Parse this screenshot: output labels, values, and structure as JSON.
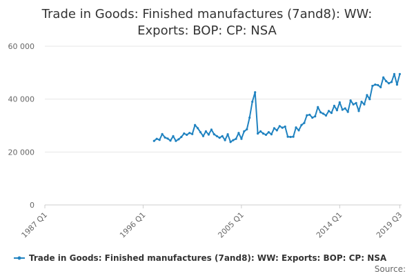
{
  "chart_data": {
    "type": "line",
    "title_lines": [
      "Trade in Goods: Finished manufactures (7and8): WW:",
      "Exports: BOP: CP: NSA"
    ],
    "xlabel": "",
    "ylabel": "",
    "x_ticks": [
      "1987 Q1",
      "1996 Q1",
      "2005 Q1",
      "2014 Q1",
      "2019 Q3"
    ],
    "y_ticks": [
      "0",
      "20 000",
      "40 000",
      "60 000"
    ],
    "xlim": [
      "1987-01",
      "2019-09"
    ],
    "ylim": [
      0,
      60000
    ],
    "grid": "horizontal",
    "legend_position": "bottom",
    "color": "#1f82c0",
    "series": [
      {
        "name": "Trade in Goods: Finished manufactures (7and8): WW: Exports: BOP: CP: NSA",
        "x": [
          "1997-01",
          "1997-04",
          "1997-07",
          "1997-10",
          "1998-01",
          "1998-04",
          "1998-07",
          "1998-10",
          "1999-01",
          "1999-04",
          "1999-07",
          "1999-10",
          "2000-01",
          "2000-04",
          "2000-07",
          "2000-10",
          "2001-01",
          "2001-04",
          "2001-07",
          "2001-10",
          "2002-01",
          "2002-04",
          "2002-07",
          "2002-10",
          "2003-01",
          "2003-04",
          "2003-07",
          "2003-10",
          "2004-01",
          "2004-04",
          "2004-07",
          "2004-10",
          "2005-01",
          "2005-04",
          "2005-07",
          "2005-10",
          "2006-01",
          "2006-04",
          "2006-07",
          "2006-10",
          "2007-01",
          "2007-04",
          "2007-07",
          "2007-10",
          "2008-01",
          "2008-04",
          "2008-07",
          "2008-10",
          "2009-01",
          "2009-04",
          "2009-07",
          "2009-10",
          "2010-01",
          "2010-04",
          "2010-07",
          "2010-10",
          "2011-01",
          "2011-04",
          "2011-07",
          "2011-10",
          "2012-01",
          "2012-04",
          "2012-07",
          "2012-10",
          "2013-01",
          "2013-04",
          "2013-07",
          "2013-10",
          "2014-01",
          "2014-04",
          "2014-07",
          "2014-10",
          "2015-01",
          "2015-04",
          "2015-07",
          "2015-10",
          "2016-01",
          "2016-04",
          "2016-07",
          "2016-10",
          "2017-01",
          "2017-04",
          "2017-07",
          "2017-10",
          "2018-01",
          "2018-04",
          "2018-07",
          "2018-10",
          "2019-01",
          "2019-04",
          "2019-07"
        ],
        "values": [
          24200,
          25000,
          24600,
          26800,
          25500,
          25100,
          24300,
          26000,
          24200,
          24800,
          25700,
          27000,
          26500,
          27200,
          26800,
          30200,
          29000,
          27500,
          26000,
          27800,
          26600,
          28500,
          26700,
          26000,
          25400,
          26000,
          24500,
          26700,
          23800,
          24500,
          25000,
          27200,
          25000,
          27800,
          28600,
          33000,
          39000,
          42600,
          27000,
          27800,
          27000,
          26500,
          27500,
          26700,
          29000,
          28200,
          29800,
          29200,
          29600,
          25800,
          25700,
          25800,
          29300,
          28200,
          30200,
          31000,
          33900,
          34100,
          33000,
          33500,
          37000,
          35000,
          34500,
          33800,
          35500,
          34800,
          37500,
          35800,
          38800,
          36000,
          36500,
          35200,
          39500,
          38000,
          38500,
          35500,
          39000,
          38000,
          41500,
          40000,
          45000,
          45500,
          45300,
          44500,
          48200,
          46800,
          46000,
          46500,
          49500,
          45500,
          49500
        ]
      }
    ],
    "source_label": "Source:"
  }
}
